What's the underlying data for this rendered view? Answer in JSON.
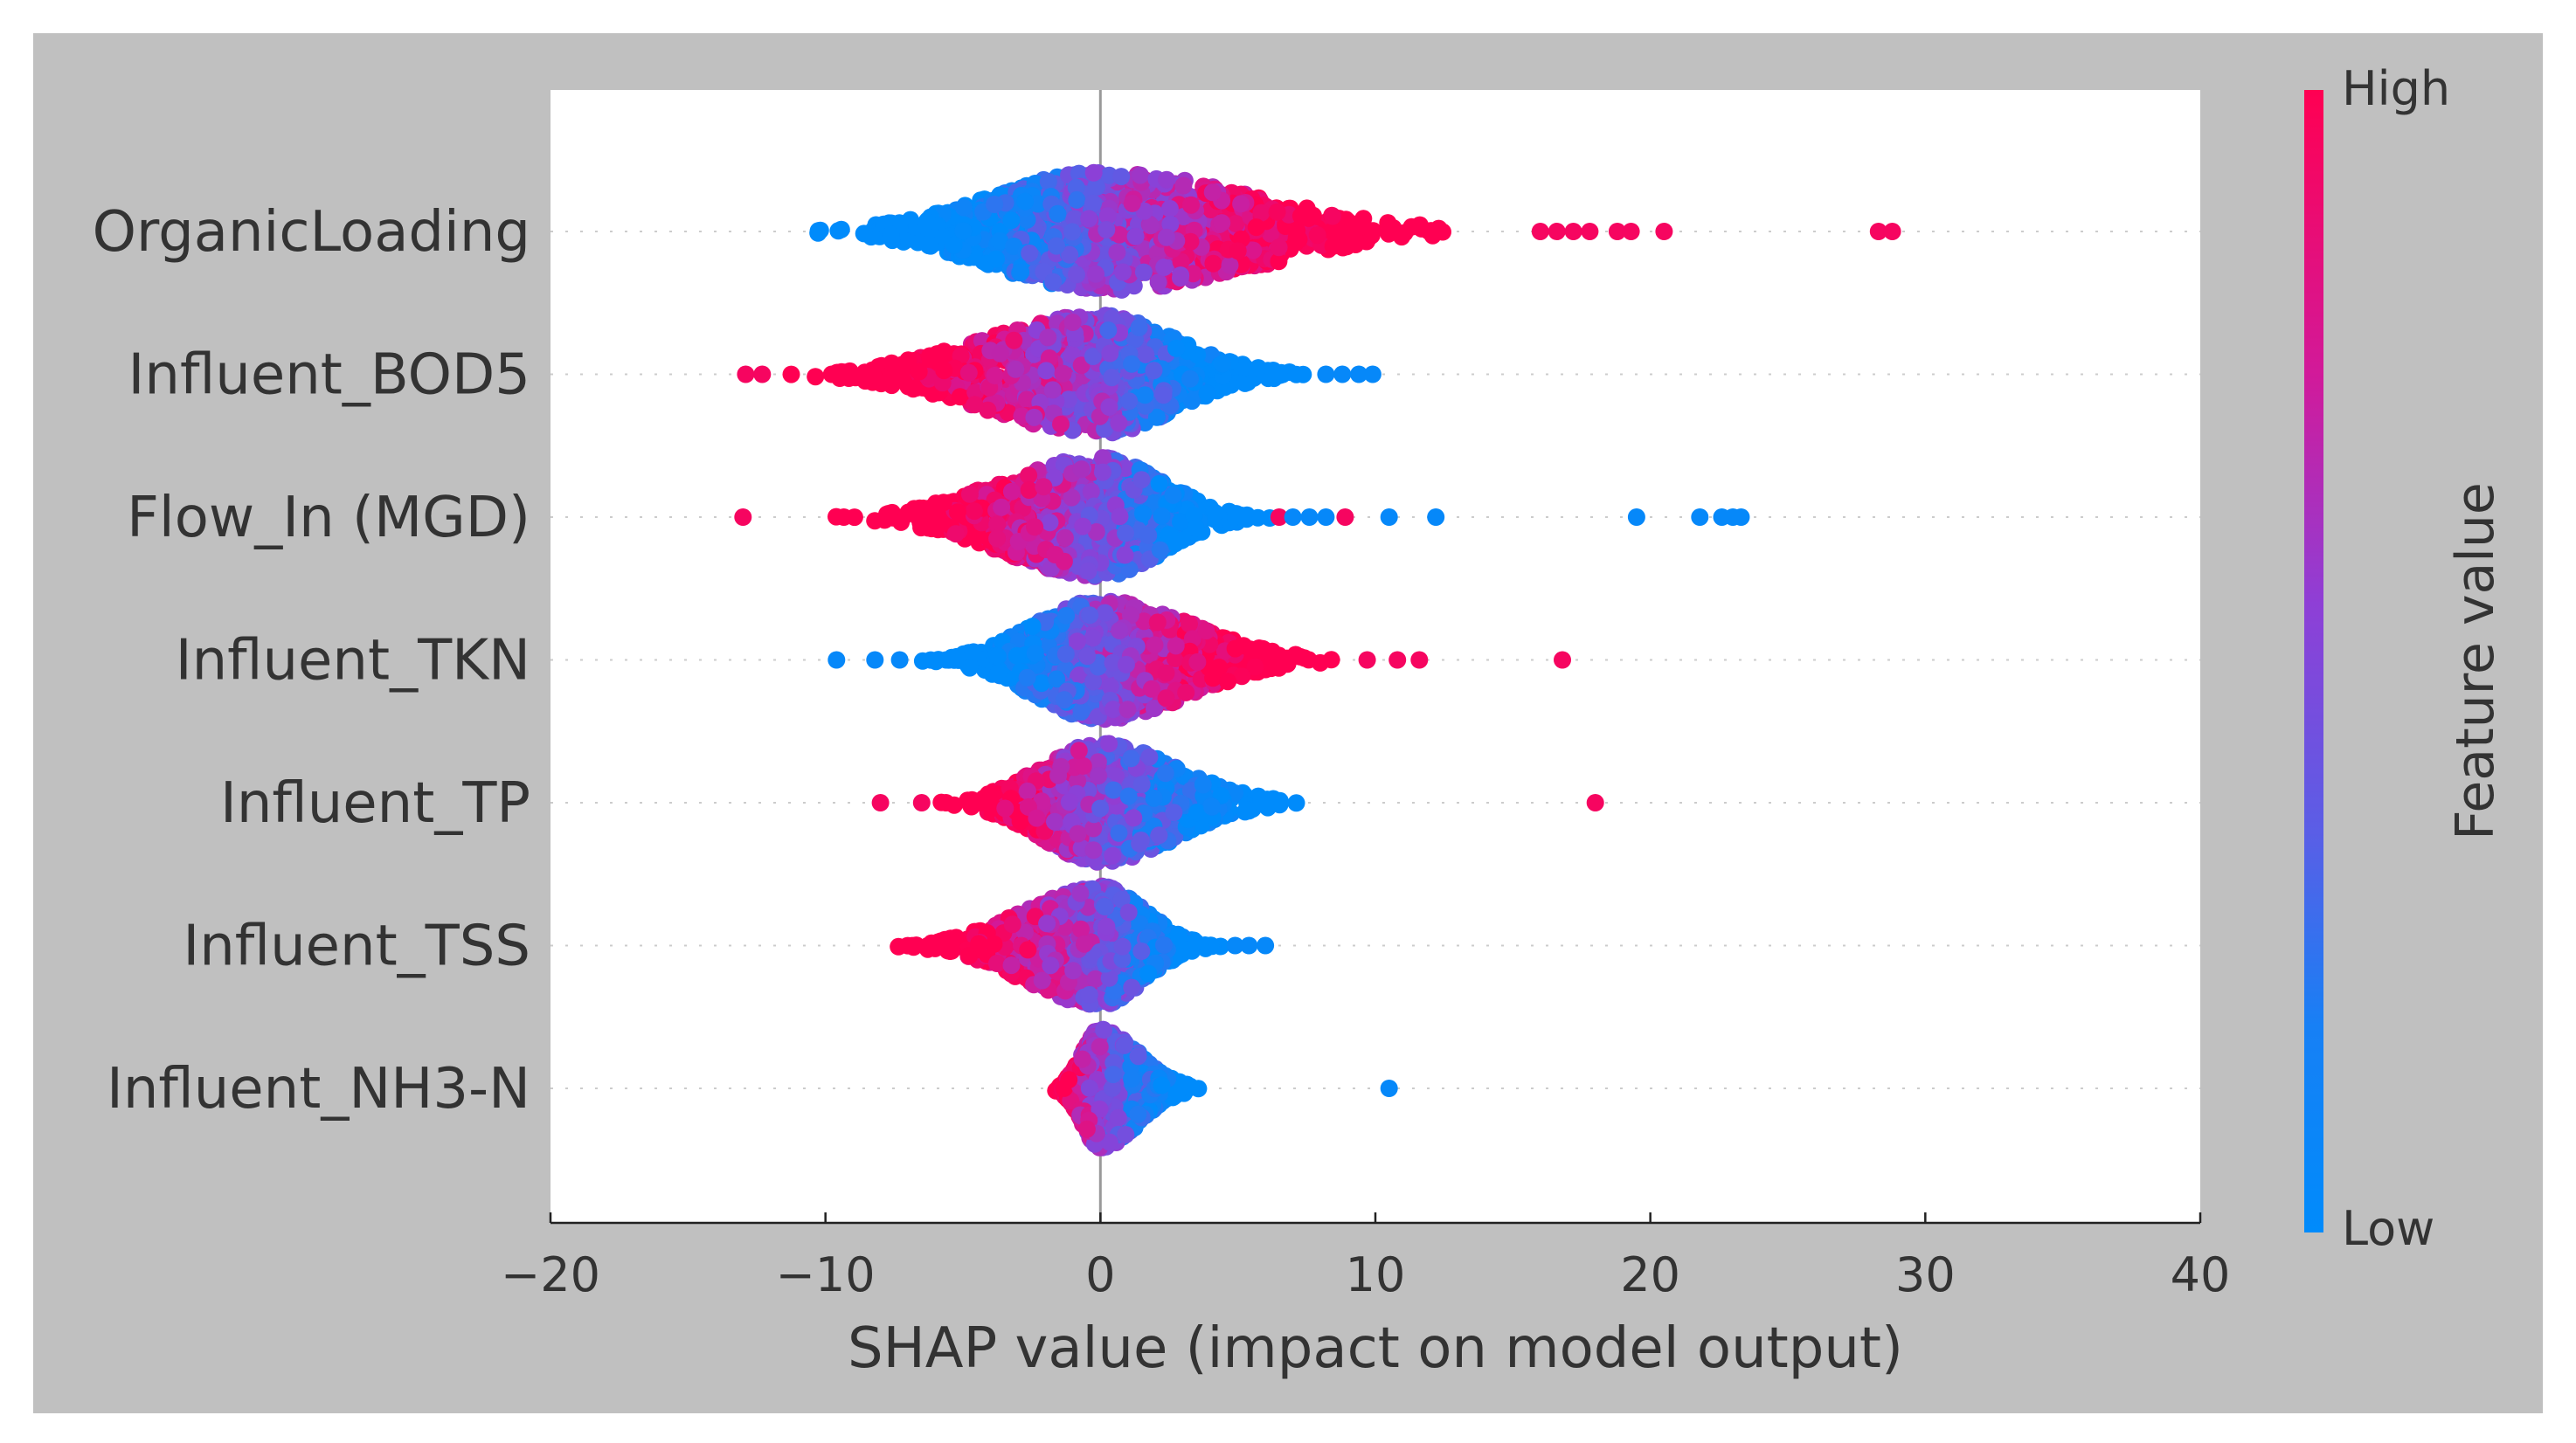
{
  "chart_data": {
    "type": "scatter",
    "subtype": "shap-beeswarm",
    "title": "",
    "xlabel": "SHAP value (impact on model output)",
    "ylabel": "",
    "xlim": [
      -20,
      40
    ],
    "xticks": [
      -20,
      -10,
      0,
      10,
      20,
      30,
      40
    ],
    "xtick_labels": [
      "−20",
      "−10",
      "0",
      "10",
      "20",
      "30",
      "40"
    ],
    "grid": false,
    "zero_line": 0,
    "features": [
      {
        "name": "OrganicLoading",
        "core_range": [
          -10.8,
          15.5
        ],
        "spread": 0.4,
        "high_direction": 1,
        "outliers": [
          {
            "x": 16.0,
            "fv": 0.95
          },
          {
            "x": 16.6,
            "fv": 0.95
          },
          {
            "x": 17.2,
            "fv": 0.95
          },
          {
            "x": 17.8,
            "fv": 0.95
          },
          {
            "x": 18.8,
            "fv": 0.95
          },
          {
            "x": 19.3,
            "fv": 0.95
          },
          {
            "x": 20.5,
            "fv": 0.95
          },
          {
            "x": 28.3,
            "fv": 0.95
          },
          {
            "x": 28.8,
            "fv": 0.95
          }
        ]
      },
      {
        "name": "Influent_BOD5",
        "core_range": [
          -11.5,
          7.6
        ],
        "spread": 0.36,
        "high_direction": -1,
        "outliers": [
          {
            "x": -12.9,
            "fv": 0.95
          },
          {
            "x": -12.3,
            "fv": 0.95
          },
          {
            "x": 8.2,
            "fv": 0.05
          },
          {
            "x": 8.8,
            "fv": 0.05
          },
          {
            "x": 9.4,
            "fv": 0.05
          },
          {
            "x": 9.9,
            "fv": 0.05
          }
        ]
      },
      {
        "name": "Flow_In (MGD)",
        "core_range": [
          -9.8,
          6.2
        ],
        "spread": 0.36,
        "high_direction": -1,
        "outliers": [
          {
            "x": -13.0,
            "fv": 0.95
          },
          {
            "x": 6.5,
            "fv": 0.95
          },
          {
            "x": 7.0,
            "fv": 0.05
          },
          {
            "x": 7.6,
            "fv": 0.05
          },
          {
            "x": 8.2,
            "fv": 0.05
          },
          {
            "x": 8.9,
            "fv": 0.95
          },
          {
            "x": 10.5,
            "fv": 0.05
          },
          {
            "x": 12.2,
            "fv": 0.05
          },
          {
            "x": 19.5,
            "fv": 0.05
          },
          {
            "x": 21.8,
            "fv": 0.05
          },
          {
            "x": 22.6,
            "fv": 0.05
          },
          {
            "x": 23.0,
            "fv": 0.05
          },
          {
            "x": 23.3,
            "fv": 0.05
          }
        ]
      },
      {
        "name": "Influent_TKN",
        "core_range": [
          -6.6,
          9.2
        ],
        "spread": 0.36,
        "high_direction": 1,
        "outliers": [
          {
            "x": -9.6,
            "fv": 0.05
          },
          {
            "x": -8.2,
            "fv": 0.05
          },
          {
            "x": -7.3,
            "fv": 0.05
          },
          {
            "x": 9.7,
            "fv": 0.95
          },
          {
            "x": 10.8,
            "fv": 0.95
          },
          {
            "x": 11.6,
            "fv": 0.95
          },
          {
            "x": 16.8,
            "fv": 0.95
          }
        ]
      },
      {
        "name": "Influent_TP",
        "core_range": [
          -5.9,
          7.6
        ],
        "spread": 0.3,
        "high_direction": -1,
        "outliers": [
          {
            "x": -8.0,
            "fv": 0.95
          },
          {
            "x": -6.5,
            "fv": 0.95
          },
          {
            "x": 18.0,
            "fv": 0.95
          }
        ]
      },
      {
        "name": "Influent_TSS",
        "core_range": [
          -7.5,
          4.4
        ],
        "spread": 0.3,
        "high_direction": -1,
        "outliers": [
          {
            "x": 4.9,
            "fv": 0.05
          },
          {
            "x": 5.4,
            "fv": 0.05
          },
          {
            "x": 6.0,
            "fv": 0.05
          }
        ]
      },
      {
        "name": "Influent_NH3-N",
        "core_range": [
          -1.8,
          3.8
        ],
        "spread": 0.26,
        "high_direction": -1,
        "outliers": [
          {
            "x": 10.5,
            "fv": 0.05
          }
        ]
      }
    ],
    "colorbar": {
      "label": "Feature value",
      "high_label": "High",
      "low_label": "Low",
      "high_color": "#ff0052",
      "low_color": "#008bfb"
    }
  }
}
